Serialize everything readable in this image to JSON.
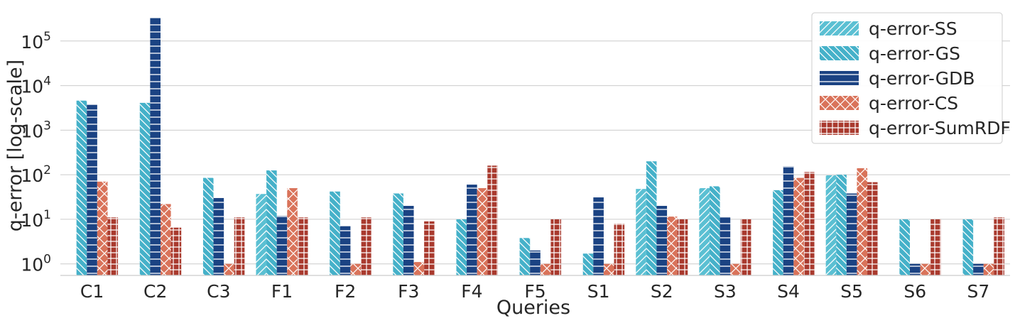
{
  "chart_data": {
    "type": "bar",
    "title": "",
    "xlabel": "Queries",
    "ylabel": "q-error [log-scale]",
    "yscale": "log",
    "ylim": [
      0.55,
      400000
    ],
    "yticks": [
      {
        "value": 1,
        "base": "10",
        "exp": "0"
      },
      {
        "value": 10,
        "base": "10",
        "exp": "1"
      },
      {
        "value": 100,
        "base": "10",
        "exp": "2"
      },
      {
        "value": 1000,
        "base": "10",
        "exp": "3"
      },
      {
        "value": 10000,
        "base": "10",
        "exp": "4"
      },
      {
        "value": 100000,
        "base": "10",
        "exp": "5"
      }
    ],
    "grid": "horizontal",
    "legend_position": "top-right",
    "categories": [
      "C1",
      "C2",
      "C3",
      "F1",
      "F2",
      "F3",
      "F4",
      "F5",
      "S1",
      "S2",
      "S3",
      "S4",
      "S5",
      "S6",
      "S7"
    ],
    "series": [
      {
        "name": "q-error-SS",
        "color": "#5bc0d3",
        "hatch": "diagonal",
        "values": [
          null,
          null,
          null,
          37,
          null,
          null,
          null,
          null,
          null,
          48,
          50,
          null,
          97,
          null,
          null
        ]
      },
      {
        "name": "q-error-GS",
        "color": "#45b1c9",
        "hatch": "backslash",
        "values": [
          4600,
          4100,
          85,
          125,
          42,
          38,
          10,
          3.8,
          1.7,
          200,
          55,
          45,
          100,
          10,
          10
        ]
      },
      {
        "name": "q-error-GDB",
        "color": "#1b4383",
        "hatch": "horizontal",
        "values": [
          3700,
          330000,
          30,
          12,
          7,
          20,
          60,
          2,
          31,
          20,
          11,
          155,
          38,
          1,
          1
        ]
      },
      {
        "name": "q-error-CS",
        "color": "#d9735a",
        "hatch": "cross",
        "values": [
          70,
          22,
          1,
          50,
          1,
          1.1,
          50,
          1,
          1,
          11.5,
          1,
          85,
          140,
          1,
          1
        ]
      },
      {
        "name": "q-error-SumRDF",
        "color": "#a93a2e",
        "hatch": "grid",
        "values": [
          11,
          6.5,
          11,
          11,
          11,
          9,
          160,
          10,
          8,
          10,
          10,
          115,
          68,
          10,
          11
        ]
      }
    ]
  }
}
